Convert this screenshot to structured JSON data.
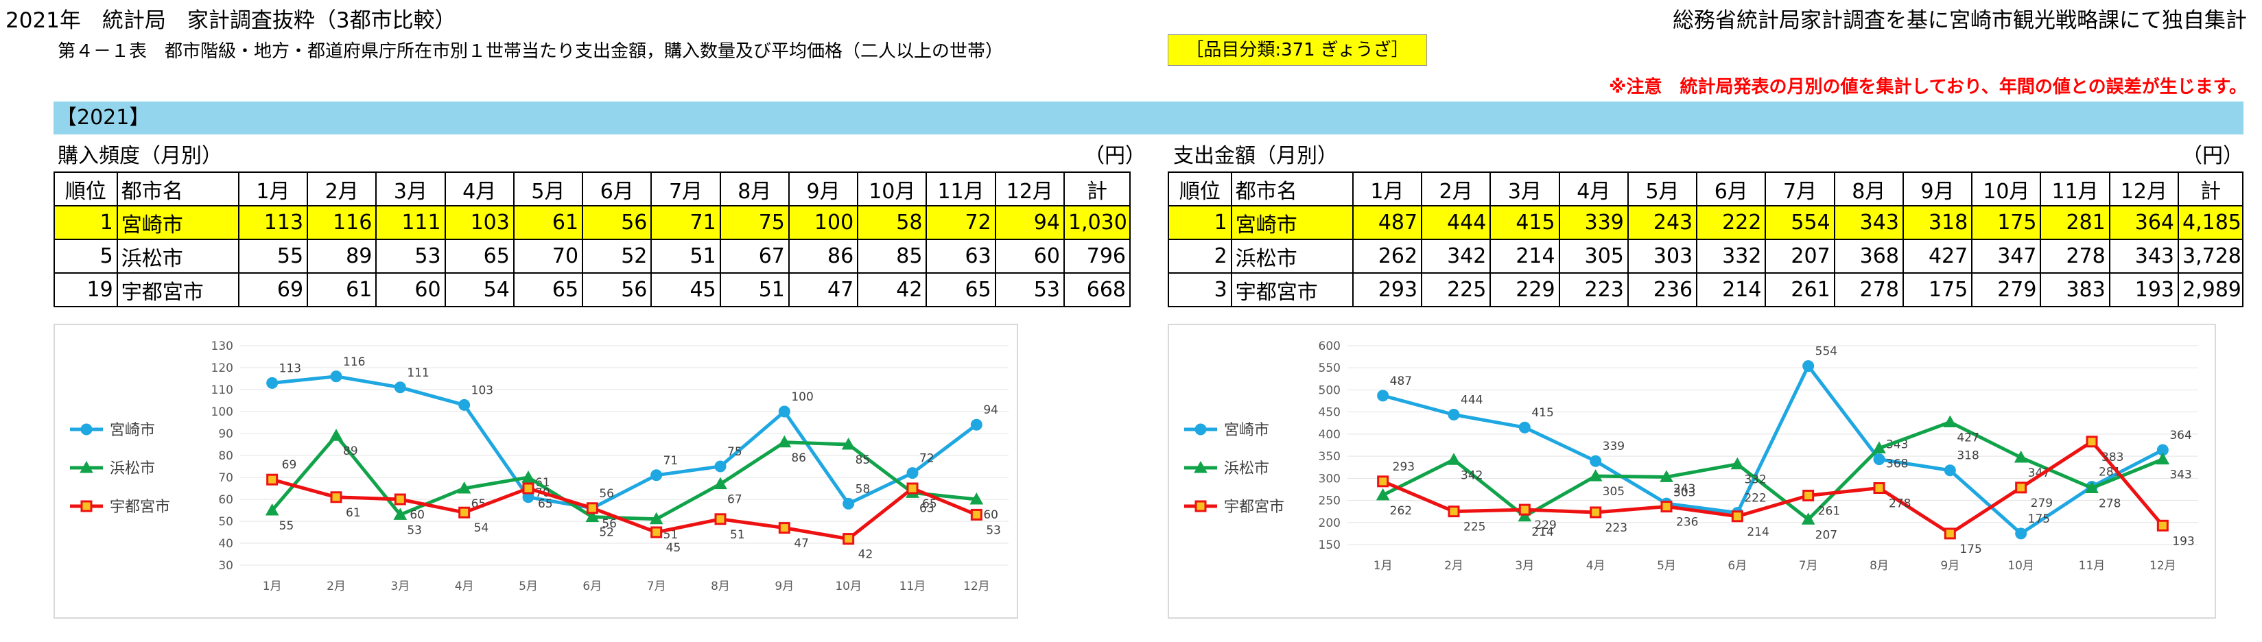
{
  "header": {
    "title_left": "2021年　統計局　家計調査抜粋（3都市比較）",
    "title_right": "総務省統計局家計調査を基に宮崎市観光戦略課にて独自集計",
    "subtitle": "第４－１表　都市階級・地方・都道府県庁所在市別１世帯当たり支出金額，購入数量及び平均価格（二人以上の世帯）",
    "category_badge": "［品目分類:371 ぎょうざ］",
    "notice": "※注意　統計局発表の月別の値を集計しており、年間の値との誤差が生じます。",
    "year": "【2021】"
  },
  "left_section": {
    "title": "購入頻度（月別）",
    "unit": "（円）",
    "columns": [
      "順位",
      "都市名",
      "1月",
      "2月",
      "3月",
      "4月",
      "5月",
      "6月",
      "7月",
      "8月",
      "9月",
      "10月",
      "11月",
      "12月",
      "計"
    ],
    "rows": [
      [
        "1",
        "宮崎市",
        "113",
        "116",
        "111",
        "103",
        "61",
        "56",
        "71",
        "75",
        "100",
        "58",
        "72",
        "94",
        "1,030"
      ],
      [
        "5",
        "浜松市",
        "55",
        "89",
        "53",
        "65",
        "70",
        "52",
        "51",
        "67",
        "86",
        "85",
        "63",
        "60",
        "796"
      ],
      [
        "19",
        "宇都宮市",
        "69",
        "61",
        "60",
        "54",
        "65",
        "56",
        "45",
        "51",
        "47",
        "42",
        "65",
        "53",
        "668"
      ]
    ]
  },
  "right_section": {
    "title": "支出金額（月別）",
    "unit": "（円）",
    "columns": [
      "順位",
      "都市名",
      "1月",
      "2月",
      "3月",
      "4月",
      "5月",
      "6月",
      "7月",
      "8月",
      "9月",
      "10月",
      "11月",
      "12月",
      "計"
    ],
    "rows": [
      [
        "1",
        "宮崎市",
        "487",
        "444",
        "415",
        "339",
        "243",
        "222",
        "554",
        "343",
        "318",
        "175",
        "281",
        "364",
        "4,185"
      ],
      [
        "2",
        "浜松市",
        "262",
        "342",
        "214",
        "305",
        "303",
        "332",
        "207",
        "368",
        "427",
        "347",
        "278",
        "343",
        "3,728"
      ],
      [
        "3",
        "宇都宮市",
        "293",
        "225",
        "229",
        "223",
        "236",
        "214",
        "261",
        "278",
        "175",
        "279",
        "383",
        "193",
        "2,989"
      ]
    ]
  },
  "colors": {
    "miyazaki": "#1ea7e1",
    "hamamatsu": "#10a34a",
    "utsunomiya": "#ee1111",
    "utsu_marker": "#f7c221"
  },
  "chart_data": [
    {
      "type": "line",
      "title": "購入頻度（月別）",
      "categories": [
        "1月",
        "2月",
        "3月",
        "4月",
        "5月",
        "6月",
        "7月",
        "8月",
        "9月",
        "10月",
        "11月",
        "12月"
      ],
      "ylim": [
        30,
        130
      ],
      "yticks": [
        30,
        40,
        50,
        60,
        70,
        80,
        90,
        100,
        110,
        120,
        130
      ],
      "series": [
        {
          "name": "宮崎市",
          "values": [
            113,
            116,
            111,
            103,
            61,
            56,
            71,
            75,
            100,
            58,
            72,
            94
          ]
        },
        {
          "name": "浜松市",
          "values": [
            55,
            89,
            53,
            65,
            70,
            52,
            51,
            67,
            86,
            85,
            63,
            60
          ]
        },
        {
          "name": "宇都宮市",
          "values": [
            69,
            61,
            60,
            54,
            65,
            56,
            45,
            51,
            47,
            42,
            65,
            53
          ]
        }
      ]
    },
    {
      "type": "line",
      "title": "支出金額（月別）",
      "categories": [
        "1月",
        "2月",
        "3月",
        "4月",
        "5月",
        "6月",
        "7月",
        "8月",
        "9月",
        "10月",
        "11月",
        "12月"
      ],
      "ylim": [
        150,
        600
      ],
      "yticks": [
        150,
        200,
        250,
        300,
        350,
        400,
        450,
        500,
        550,
        600
      ],
      "series": [
        {
          "name": "宮崎市",
          "values": [
            487,
            444,
            415,
            339,
            243,
            222,
            554,
            343,
            318,
            175,
            281,
            364
          ]
        },
        {
          "name": "浜松市",
          "values": [
            262,
            342,
            214,
            305,
            303,
            332,
            207,
            368,
            427,
            347,
            278,
            343
          ]
        },
        {
          "name": "宇都宮市",
          "values": [
            293,
            225,
            229,
            223,
            236,
            214,
            261,
            278,
            175,
            279,
            383,
            193
          ]
        }
      ]
    }
  ]
}
